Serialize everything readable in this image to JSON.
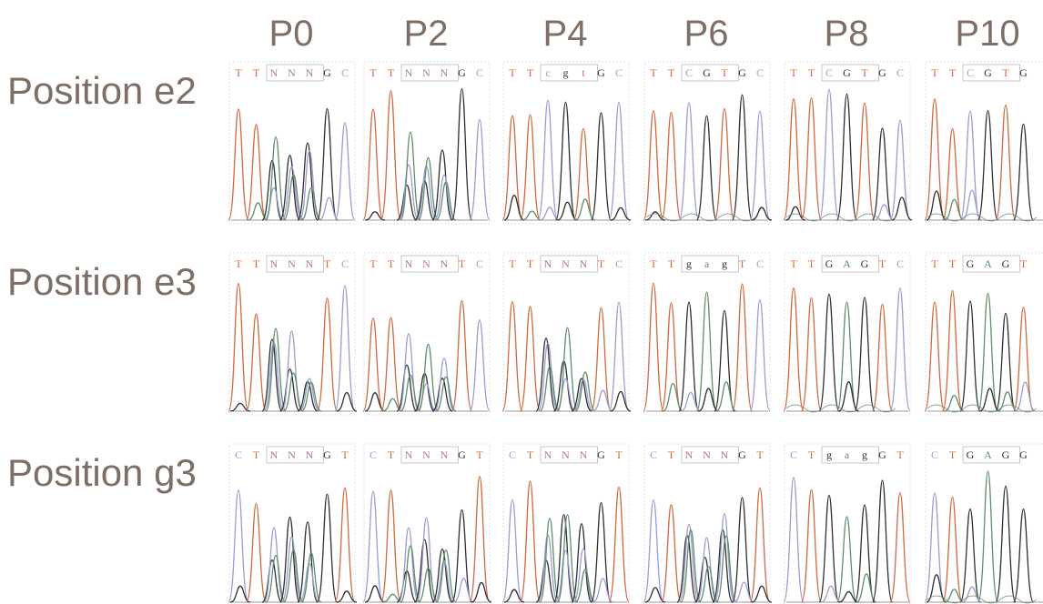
{
  "columns": [
    "P0",
    "P2",
    "P4",
    "P6",
    "P8",
    "P10"
  ],
  "rows": [
    {
      "label": "Position e2",
      "cells": [
        {
          "bases": [
            "T",
            "T",
            "N",
            "N",
            "N",
            "G",
            "C"
          ]
        },
        {
          "bases": [
            "T",
            "T",
            "N",
            "N",
            "N",
            "G",
            "C"
          ]
        },
        {
          "bases": [
            "T",
            "T",
            "c",
            "g",
            "t",
            "G",
            "C"
          ]
        },
        {
          "bases": [
            "T",
            "T",
            "C",
            "G",
            "T",
            "G",
            "C"
          ]
        },
        {
          "bases": [
            "T",
            "T",
            "C",
            "G",
            "T",
            "G",
            "C"
          ]
        },
        {
          "bases": [
            "T",
            "T",
            "C",
            "G",
            "T",
            "G"
          ]
        }
      ]
    },
    {
      "label": "Position e3",
      "cells": [
        {
          "bases": [
            "T",
            "T",
            "N",
            "N",
            "N",
            "T",
            "C"
          ]
        },
        {
          "bases": [
            "T",
            "T",
            "N",
            "N",
            "N",
            "T",
            "C"
          ]
        },
        {
          "bases": [
            "T",
            "T",
            "N",
            "N",
            "N",
            "T",
            "C"
          ]
        },
        {
          "bases": [
            "T",
            "T",
            "g",
            "a",
            "g",
            "T",
            "C"
          ]
        },
        {
          "bases": [
            "T",
            "T",
            "G",
            "A",
            "G",
            "T",
            "C"
          ]
        },
        {
          "bases": [
            "T",
            "T",
            "G",
            "A",
            "G",
            "T"
          ]
        }
      ]
    },
    {
      "label": "Position g3",
      "cells": [
        {
          "bases": [
            "C",
            "T",
            "N",
            "N",
            "N",
            "G",
            "T"
          ]
        },
        {
          "bases": [
            "C",
            "T",
            "N",
            "N",
            "N",
            "G",
            "T"
          ]
        },
        {
          "bases": [
            "C",
            "T",
            "N",
            "N",
            "N",
            "G",
            "T"
          ]
        },
        {
          "bases": [
            "C",
            "T",
            "N",
            "N",
            "N",
            "G",
            "T"
          ]
        },
        {
          "bases": [
            "C",
            "T",
            "g",
            "a",
            "g",
            "G",
            "T"
          ]
        },
        {
          "bases": [
            "C",
            "T",
            "G",
            "A",
            "G",
            "G"
          ]
        }
      ]
    }
  ]
}
